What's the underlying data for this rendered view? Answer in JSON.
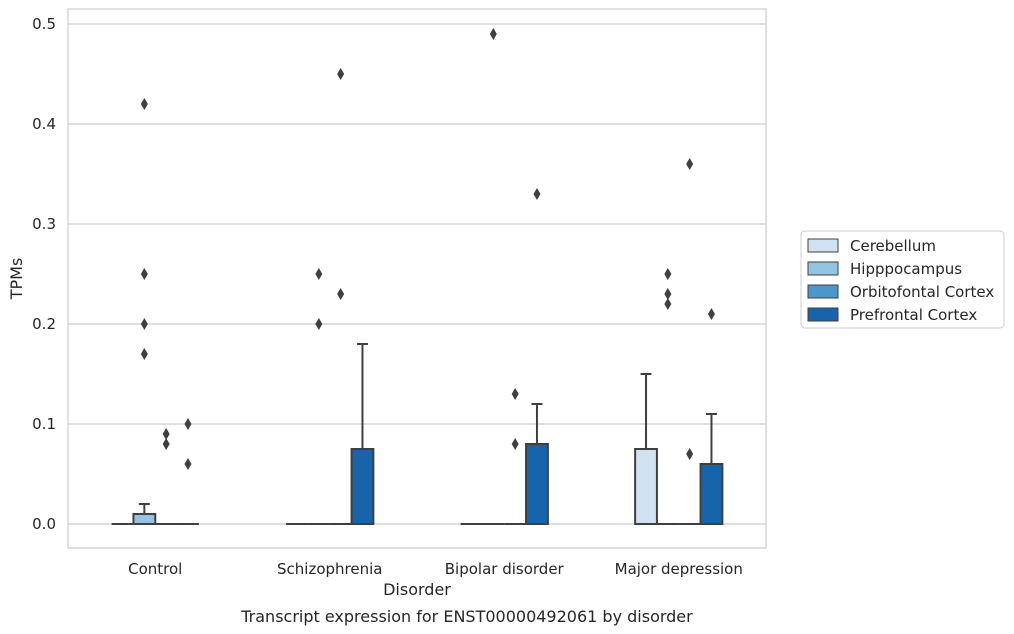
{
  "chart_data": {
    "type": "box",
    "title": "",
    "caption": "Transcript expression for ENST00000492061 by disorder",
    "xlabel": "Disorder",
    "ylabel": "TPMs",
    "ylim": [
      -0.024,
      0.515
    ],
    "yticks": [
      "0.0",
      "0.1",
      "0.2",
      "0.3",
      "0.4",
      "0.5"
    ],
    "grid": true,
    "legend_position": "right",
    "categories": [
      "Control",
      "Schizophrenia",
      "Bipolar disorder",
      "Major depression"
    ],
    "series": [
      {
        "name": "Cerebellum",
        "color": "#d0e1f2",
        "boxes": [
          {
            "q1": 0,
            "median": 0,
            "q3": 0,
            "whisker_low": 0,
            "whisker_high": 0,
            "outliers": []
          },
          {
            "q1": 0,
            "median": 0,
            "q3": 0,
            "whisker_low": 0,
            "whisker_high": 0,
            "outliers": []
          },
          {
            "q1": 0,
            "median": 0,
            "q3": 0,
            "whisker_low": 0,
            "whisker_high": 0,
            "outliers": []
          },
          {
            "q1": 0,
            "median": 0,
            "q3": 0.075,
            "whisker_low": 0,
            "whisker_high": 0.15,
            "outliers": []
          }
        ]
      },
      {
        "name": "Hipppocampus",
        "color": "#94c4df",
        "boxes": [
          {
            "q1": 0,
            "median": 0,
            "q3": 0.01,
            "whisker_low": 0,
            "whisker_high": 0.02,
            "outliers": [
              0.42,
              0.25,
              0.2,
              0.17
            ]
          },
          {
            "q1": 0,
            "median": 0,
            "q3": 0,
            "whisker_low": 0,
            "whisker_high": 0,
            "outliers": [
              0.25,
              0.2
            ]
          },
          {
            "q1": 0,
            "median": 0,
            "q3": 0,
            "whisker_low": 0,
            "whisker_high": 0,
            "outliers": [
              0.49
            ]
          },
          {
            "q1": 0,
            "median": 0,
            "q3": 0,
            "whisker_low": 0,
            "whisker_high": 0,
            "outliers": [
              0.25,
              0.23,
              0.22
            ]
          }
        ]
      },
      {
        "name": "Orbitofontal Cortex",
        "color": "#4a98c9",
        "boxes": [
          {
            "q1": 0,
            "median": 0,
            "q3": 0,
            "whisker_low": 0,
            "whisker_high": 0,
            "outliers": [
              0.09,
              0.08
            ]
          },
          {
            "q1": 0,
            "median": 0,
            "q3": 0,
            "whisker_low": 0,
            "whisker_high": 0,
            "outliers": [
              0.45,
              0.23
            ]
          },
          {
            "q1": 0,
            "median": 0,
            "q3": 0,
            "whisker_low": 0,
            "whisker_high": 0,
            "outliers": [
              0.13,
              0.08
            ]
          },
          {
            "q1": 0,
            "median": 0,
            "q3": 0,
            "whisker_low": 0,
            "whisker_high": 0,
            "outliers": [
              0.36,
              0.07
            ]
          }
        ]
      },
      {
        "name": "Prefrontal Cortex",
        "color": "#1764ab",
        "boxes": [
          {
            "q1": 0,
            "median": 0,
            "q3": 0,
            "whisker_low": 0,
            "whisker_high": 0,
            "outliers": [
              0.1,
              0.06
            ]
          },
          {
            "q1": 0,
            "median": 0,
            "q3": 0.075,
            "whisker_low": 0,
            "whisker_high": 0.18,
            "outliers": []
          },
          {
            "q1": 0,
            "median": 0,
            "q3": 0.08,
            "whisker_low": 0,
            "whisker_high": 0.12,
            "outliers": [
              0.33
            ]
          },
          {
            "q1": 0,
            "median": 0,
            "q3": 0.06,
            "whisker_low": 0,
            "whisker_high": 0.11,
            "outliers": [
              0.21
            ]
          }
        ]
      }
    ]
  }
}
